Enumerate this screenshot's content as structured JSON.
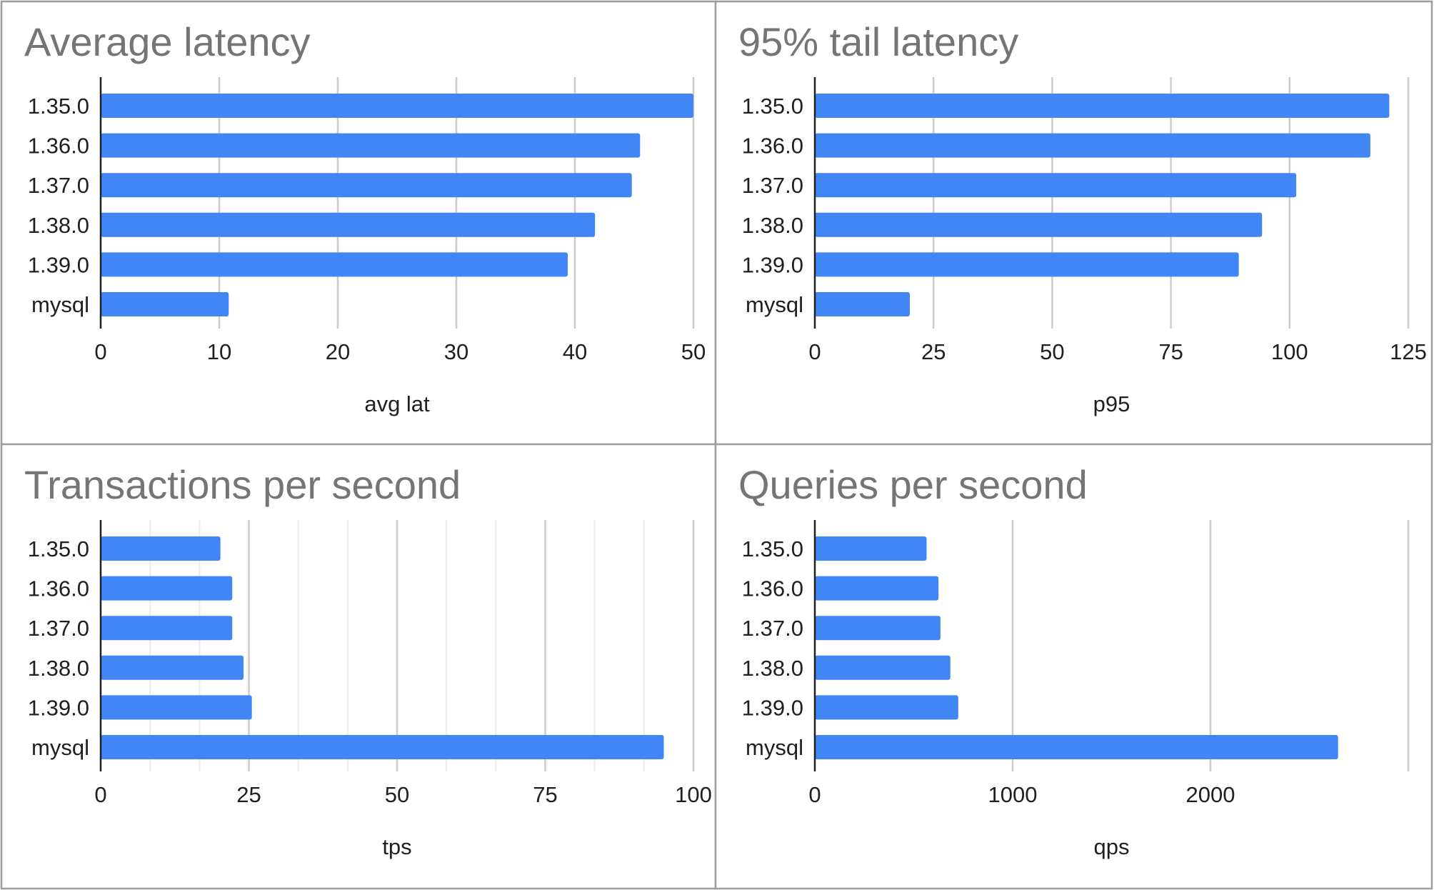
{
  "colors": {
    "bar": "#4285f4",
    "title": "#757575",
    "text": "#202020",
    "grid": "#cccccc",
    "minor_grid": "#ebebeb",
    "border": "#9e9e9e"
  },
  "chart_data": [
    {
      "type": "bar",
      "orientation": "horizontal",
      "title": "Average latency",
      "categories": [
        "1.35.0",
        "1.36.0",
        "1.37.0",
        "1.38.0",
        "1.39.0",
        "mysql"
      ],
      "values": [
        50,
        45.5,
        44.8,
        41.7,
        39.4,
        10.8
      ],
      "xlabel": "avg lat",
      "ylabel": "",
      "xlim": [
        0,
        50
      ],
      "ticks": [
        0,
        10,
        20,
        30,
        40,
        50
      ],
      "tick_labels": [
        "0",
        "10",
        "20",
        "30",
        "40",
        "50"
      ],
      "minor_ticks": [],
      "grid": true
    },
    {
      "type": "bar",
      "orientation": "horizontal",
      "title": "95% tail latency",
      "categories": [
        "1.35.0",
        "1.36.0",
        "1.37.0",
        "1.38.0",
        "1.39.0",
        "mysql"
      ],
      "values": [
        121,
        117,
        101.4,
        94.2,
        89.3,
        20
      ],
      "xlabel": "p95",
      "ylabel": "",
      "xlim": [
        0,
        125
      ],
      "ticks": [
        0,
        25,
        50,
        75,
        100,
        125
      ],
      "tick_labels": [
        "0",
        "25",
        "50",
        "75",
        "100",
        "125"
      ],
      "minor_ticks": [],
      "grid": true
    },
    {
      "type": "bar",
      "orientation": "horizontal",
      "title": "Transactions per second",
      "categories": [
        "1.35.0",
        "1.36.0",
        "1.37.0",
        "1.38.0",
        "1.39.0",
        "mysql"
      ],
      "values": [
        20.2,
        22.2,
        22.2,
        24.1,
        25.5,
        95
      ],
      "xlabel": "tps",
      "ylabel": "",
      "xlim": [
        0,
        100
      ],
      "ticks": [
        0,
        25,
        50,
        75,
        100
      ],
      "tick_labels": [
        "0",
        "25",
        "50",
        "75",
        "100"
      ],
      "minor_ticks": [
        8.33,
        16.67,
        33.33,
        41.67,
        58.33,
        66.67,
        83.33,
        91.67
      ],
      "grid": true
    },
    {
      "type": "bar",
      "orientation": "horizontal",
      "title": "Queries per second",
      "categories": [
        "1.35.0",
        "1.36.0",
        "1.37.0",
        "1.38.0",
        "1.39.0",
        "mysql"
      ],
      "values": [
        565,
        625,
        635,
        685,
        725,
        2645
      ],
      "xlabel": "qps",
      "ylabel": "",
      "xlim": [
        0,
        3000
      ],
      "ticks": [
        0,
        1000,
        2000,
        3000
      ],
      "tick_labels": [
        "0",
        "1000",
        "2000",
        ""
      ],
      "minor_ticks": [],
      "grid": true
    }
  ]
}
